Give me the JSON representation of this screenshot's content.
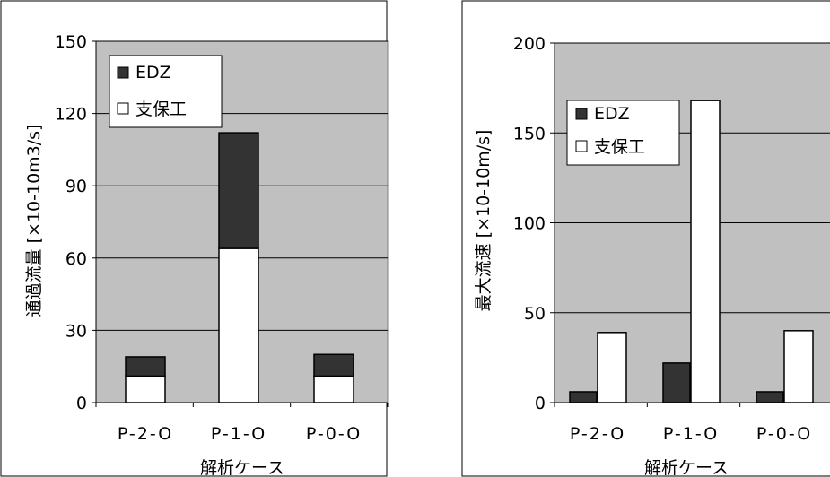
{
  "chart_data": [
    {
      "type": "bar",
      "stacked": true,
      "categories": [
        "P-2-O",
        "P-1-O",
        "P-0-O"
      ],
      "series": [
        {
          "name": "支保工",
          "values": [
            11,
            64,
            11
          ],
          "color": "#ffffff"
        },
        {
          "name": "EDZ",
          "values": [
            8,
            48,
            9
          ],
          "color": "#333333"
        }
      ],
      "legend_order": [
        "EDZ",
        "支保工"
      ],
      "xlabel": "解析ケース",
      "ylabel_main": "通過流量",
      "ylabel_unit": "[×10-10m3/s]",
      "ylim": [
        0,
        150
      ],
      "yticks": [
        "0",
        "30",
        "60",
        "90",
        "120",
        "150"
      ],
      "ytick_values": [
        0,
        30,
        60,
        90,
        120,
        150
      ],
      "grid": true,
      "legend_position": "top-left",
      "plot_bg": "#c0c0c0"
    },
    {
      "type": "bar",
      "stacked": false,
      "categories": [
        "P-2-O",
        "P-1-O",
        "P-0-O"
      ],
      "series": [
        {
          "name": "EDZ",
          "values": [
            6,
            22,
            6
          ],
          "color": "#333333"
        },
        {
          "name": "支保工",
          "values": [
            39,
            168,
            40
          ],
          "color": "#ffffff"
        }
      ],
      "legend_order": [
        "EDZ",
        "支保工"
      ],
      "xlabel": "解析ケース",
      "ylabel_main": "最大流速",
      "ylabel_unit": "[×10-10m/s]",
      "ylim": [
        0,
        200
      ],
      "yticks": [
        "0",
        "50",
        "100",
        "150",
        "200"
      ],
      "ytick_values": [
        0,
        50,
        100,
        150,
        200
      ],
      "grid": true,
      "legend_position": "top-left",
      "plot_bg": "#c0c0c0"
    }
  ]
}
